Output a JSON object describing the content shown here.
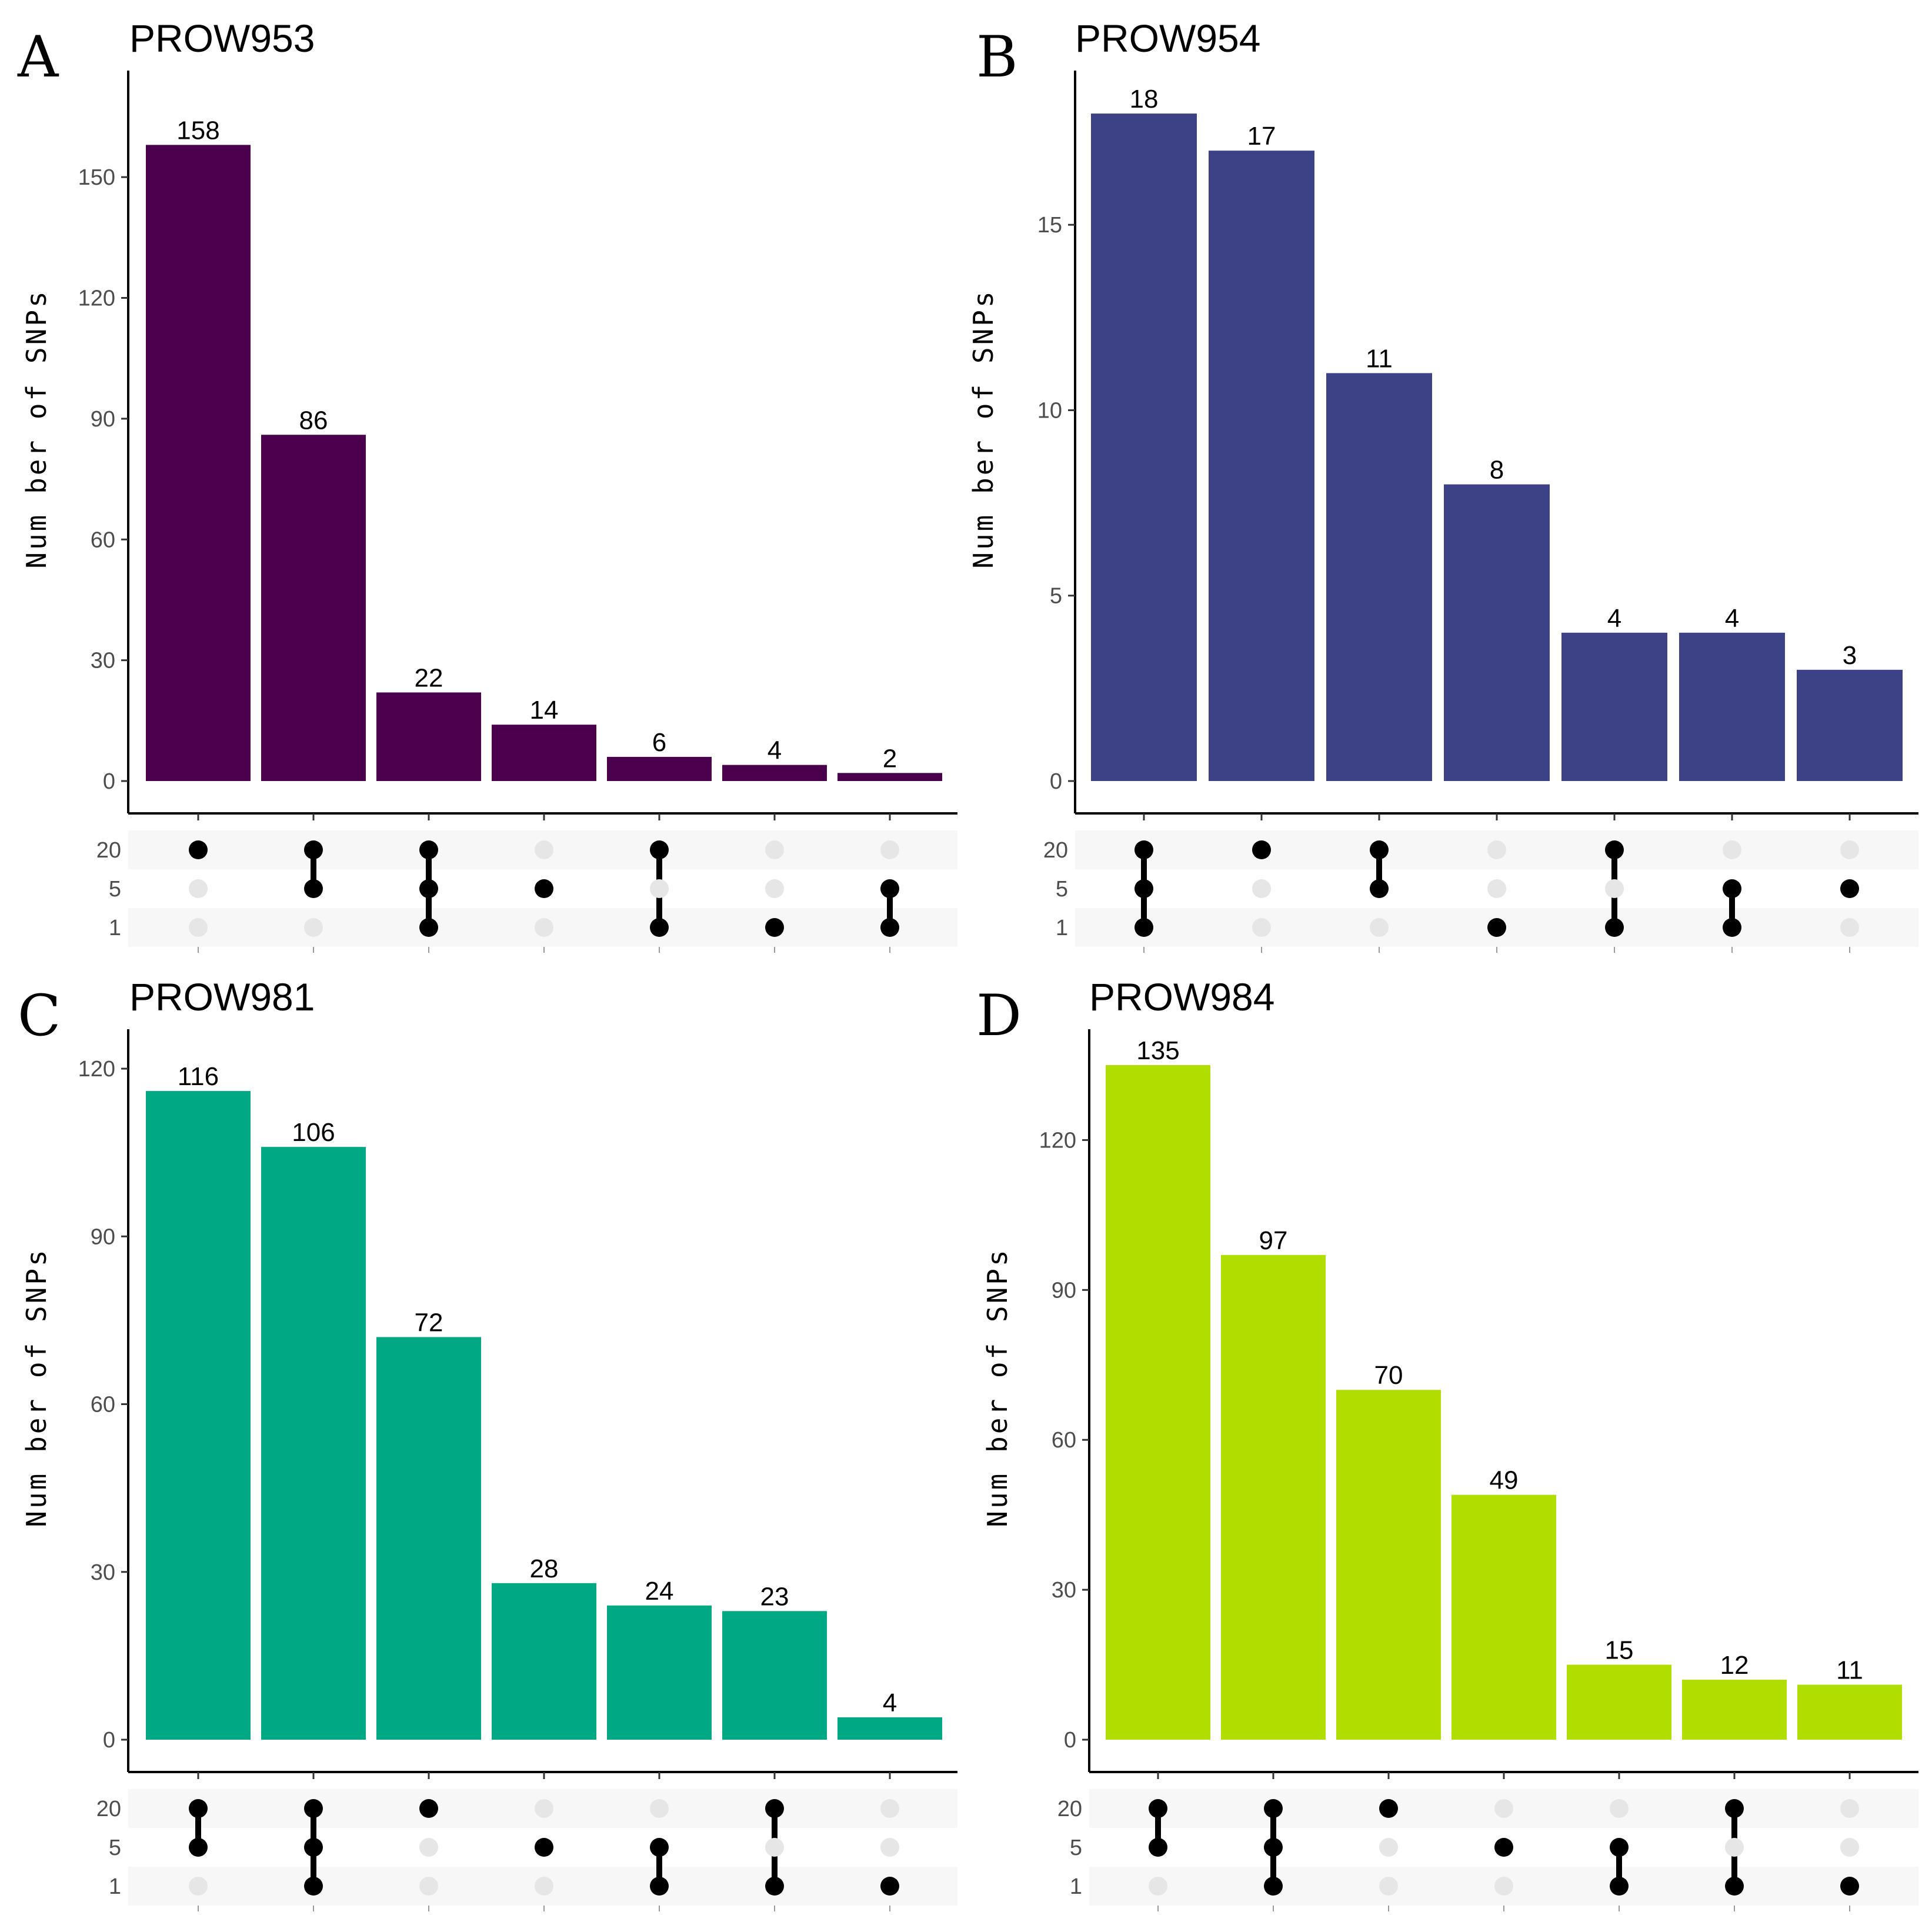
{
  "chart_data": [
    {
      "panel": "A",
      "title": "PROW953",
      "type": "bar",
      "ylabel": "Num ber of SNPs",
      "color": "#4a004d",
      "ylim": [
        0,
        175
      ],
      "yticks": [
        0,
        30,
        60,
        90,
        120,
        150
      ],
      "values": [
        158,
        86,
        22,
        14,
        6,
        4,
        2
      ],
      "sets": [
        "20",
        "5",
        "1"
      ],
      "membership": [
        [
          1,
          0,
          0
        ],
        [
          1,
          1,
          0
        ],
        [
          1,
          1,
          1
        ],
        [
          0,
          1,
          0
        ],
        [
          1,
          0,
          1
        ],
        [
          0,
          0,
          1
        ],
        [
          0,
          1,
          1
        ]
      ]
    },
    {
      "panel": "B",
      "title": "PROW954",
      "type": "bar",
      "ylabel": "Num ber of SNPs",
      "color": "#3d4287",
      "ylim": [
        0,
        19
      ],
      "yticks": [
        0,
        5,
        10,
        15
      ],
      "values": [
        18,
        17,
        11,
        8,
        4,
        4,
        3
      ],
      "sets": [
        "20",
        "5",
        "1"
      ],
      "membership": [
        [
          1,
          1,
          1
        ],
        [
          1,
          0,
          0
        ],
        [
          1,
          1,
          0
        ],
        [
          0,
          0,
          1
        ],
        [
          1,
          0,
          1
        ],
        [
          0,
          1,
          1
        ],
        [
          0,
          1,
          0
        ]
      ]
    },
    {
      "panel": "C",
      "title": "PROW981",
      "type": "bar",
      "ylabel": "Num ber of SNPs",
      "color": "#00a884",
      "ylim": [
        0,
        126
      ],
      "yticks": [
        0,
        30,
        60,
        90,
        120
      ],
      "values": [
        116,
        106,
        72,
        28,
        24,
        23,
        4
      ],
      "sets": [
        "20",
        "5",
        "1"
      ],
      "membership": [
        [
          1,
          1,
          0
        ],
        [
          1,
          1,
          1
        ],
        [
          1,
          0,
          0
        ],
        [
          0,
          1,
          0
        ],
        [
          0,
          1,
          1
        ],
        [
          1,
          0,
          1
        ],
        [
          0,
          0,
          1
        ]
      ]
    },
    {
      "panel": "D",
      "title": "PROW984",
      "type": "bar",
      "ylabel": "Num ber of SNPs",
      "color": "#b0de00",
      "ylim": [
        0,
        141
      ],
      "yticks": [
        0,
        30,
        60,
        90,
        120
      ],
      "values": [
        135,
        97,
        70,
        49,
        15,
        12,
        11
      ],
      "sets": [
        "20",
        "5",
        "1"
      ],
      "membership": [
        [
          1,
          1,
          0
        ],
        [
          1,
          1,
          1
        ],
        [
          1,
          0,
          0
        ],
        [
          0,
          1,
          0
        ],
        [
          0,
          1,
          1
        ],
        [
          1,
          0,
          1
        ],
        [
          0,
          0,
          1
        ]
      ]
    }
  ]
}
